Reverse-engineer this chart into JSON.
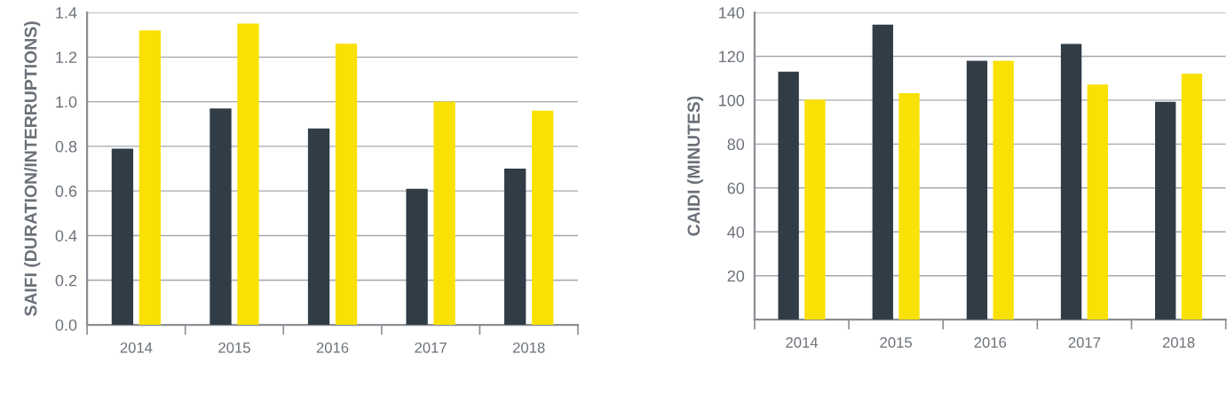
{
  "chart_data": [
    {
      "type": "bar",
      "ylabel": "SAIFI (DURATION/INTERRUPTIONS)",
      "categories": [
        "2014",
        "2015",
        "2016",
        "2017",
        "2018"
      ],
      "series": [
        {
          "color": "#303c46",
          "values": [
            0.79,
            0.97,
            0.88,
            0.61,
            0.7
          ]
        },
        {
          "color": "#f9e104",
          "values": [
            1.32,
            1.35,
            1.26,
            1.0,
            0.96
          ]
        }
      ],
      "ylim": [
        0,
        1.4
      ],
      "yticks": [
        {
          "value": 0,
          "label": "0.0"
        },
        0.2,
        0.4,
        0.6,
        0.8,
        {
          "value": 1.0,
          "label": "1.0"
        },
        1.2,
        1.4
      ],
      "grid": "y"
    },
    {
      "type": "bar",
      "ylabel": "CAIDI (MINUTES)",
      "categories": [
        "2014",
        "2015",
        "2016",
        "2017",
        "2018"
      ],
      "series": [
        {
          "color": "#303c46",
          "values": [
            113,
            134.5,
            118,
            125.7,
            99.3
          ]
        },
        {
          "color": "#f9e104",
          "values": [
            100.3,
            103.2,
            118,
            107.1,
            112.1
          ]
        }
      ],
      "ylim": [
        0,
        140
      ],
      "yticks": [
        20,
        40,
        60,
        80,
        100,
        120,
        140
      ],
      "grid": "y"
    }
  ]
}
